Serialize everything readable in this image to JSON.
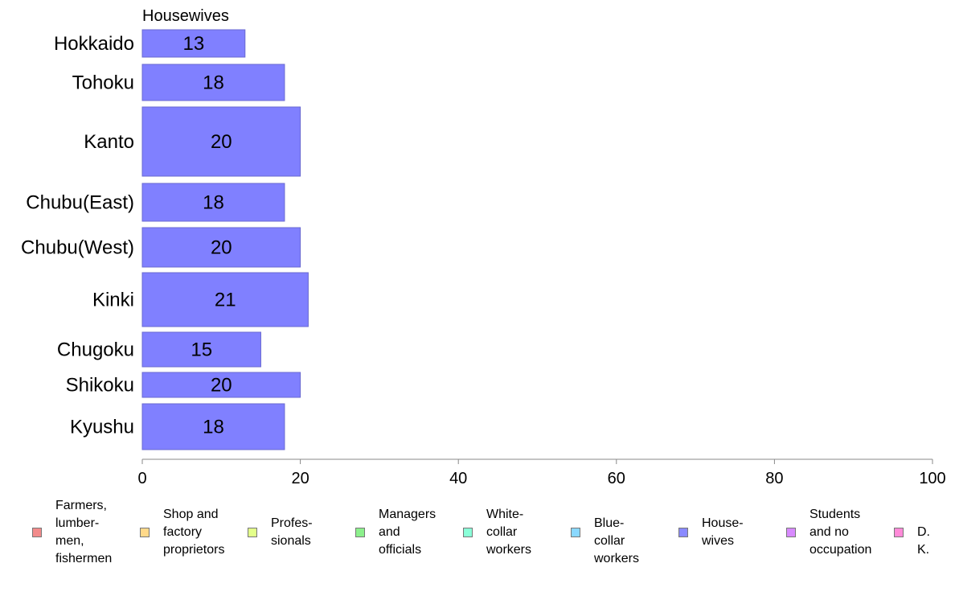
{
  "chart_data": {
    "type": "bar",
    "orientation": "horizontal",
    "title": "Housewives",
    "categories": [
      "Hokkaido",
      "Tohoku",
      "Kanto",
      "Chubu(East)",
      "Chubu(West)",
      "Kinki",
      "Chugoku",
      "Shikoku",
      "Kyushu"
    ],
    "values": [
      13,
      18,
      20,
      18,
      20,
      21,
      15,
      20,
      18
    ],
    "bar_color": "#8080ff",
    "xlim": [
      0,
      100
    ],
    "xticks": [
      0,
      20,
      40,
      60,
      80,
      100
    ],
    "grid": false
  },
  "legend": {
    "placement": "bottom",
    "items": [
      {
        "label": "Farmers,\nlumber-\nmen,\nfishermen",
        "color": "#f28b8b"
      },
      {
        "label": "Shop and\nfactory\nproprietors",
        "color": "#ffd98a"
      },
      {
        "label": "Profes-\nsionals",
        "color": "#e3ff8a"
      },
      {
        "label": "Managers\nand\nofficials",
        "color": "#8cf08c"
      },
      {
        "label": "White-\ncollar\nworkers",
        "color": "#8affd8"
      },
      {
        "label": "Blue-collar\nworkers",
        "color": "#8ad8ff"
      },
      {
        "label": "House-\nwives",
        "color": "#8a8aff"
      },
      {
        "label": "Students\nand no\noccupation",
        "color": "#d88aff"
      },
      {
        "label": "D. K.",
        "color": "#ff8ad8"
      }
    ]
  }
}
